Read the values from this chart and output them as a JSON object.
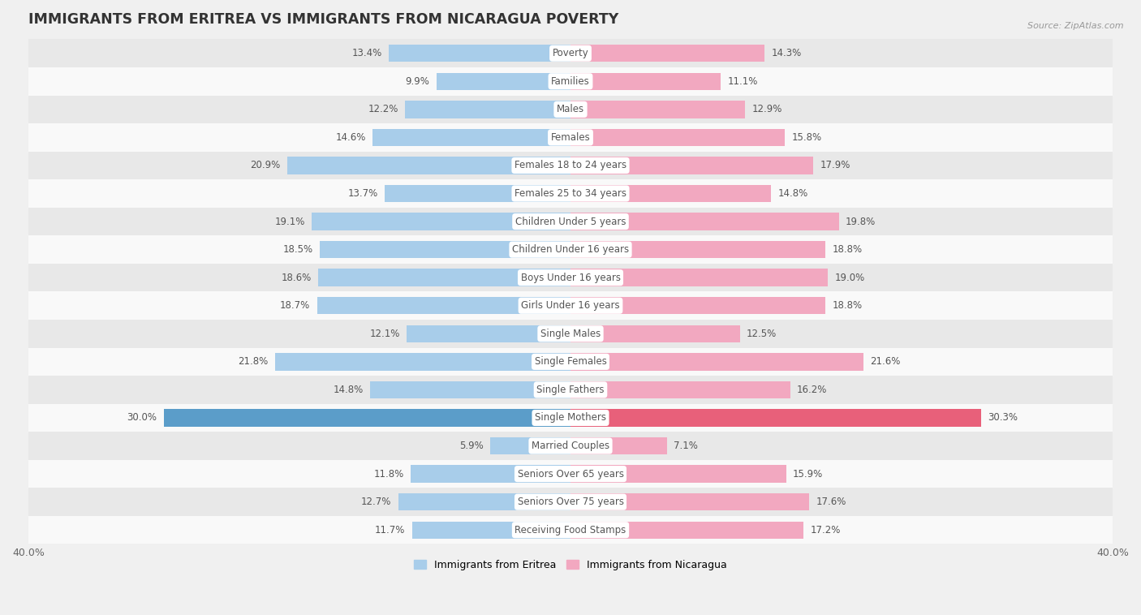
{
  "title": "IMMIGRANTS FROM ERITREA VS IMMIGRANTS FROM NICARAGUA POVERTY",
  "source": "Source: ZipAtlas.com",
  "categories": [
    "Poverty",
    "Families",
    "Males",
    "Females",
    "Females 18 to 24 years",
    "Females 25 to 34 years",
    "Children Under 5 years",
    "Children Under 16 years",
    "Boys Under 16 years",
    "Girls Under 16 years",
    "Single Males",
    "Single Females",
    "Single Fathers",
    "Single Mothers",
    "Married Couples",
    "Seniors Over 65 years",
    "Seniors Over 75 years",
    "Receiving Food Stamps"
  ],
  "eritrea_values": [
    13.4,
    9.9,
    12.2,
    14.6,
    20.9,
    13.7,
    19.1,
    18.5,
    18.6,
    18.7,
    12.1,
    21.8,
    14.8,
    30.0,
    5.9,
    11.8,
    12.7,
    11.7
  ],
  "nicaragua_values": [
    14.3,
    11.1,
    12.9,
    15.8,
    17.9,
    14.8,
    19.8,
    18.8,
    19.0,
    18.8,
    12.5,
    21.6,
    16.2,
    30.3,
    7.1,
    15.9,
    17.6,
    17.2
  ],
  "eritrea_color": "#A8CDEA",
  "nicaragua_color": "#F2A8C0",
  "eritrea_highlight_color": "#5B9DC9",
  "nicaragua_highlight_color": "#E8607A",
  "background_color": "#f0f0f0",
  "row_light_color": "#f9f9f9",
  "row_dark_color": "#e8e8e8",
  "axis_limit": 40.0,
  "bar_height": 0.62,
  "title_fontsize": 12.5,
  "label_fontsize": 8.5,
  "value_fontsize": 8.5,
  "legend_fontsize": 9,
  "highlight_idx": 13
}
